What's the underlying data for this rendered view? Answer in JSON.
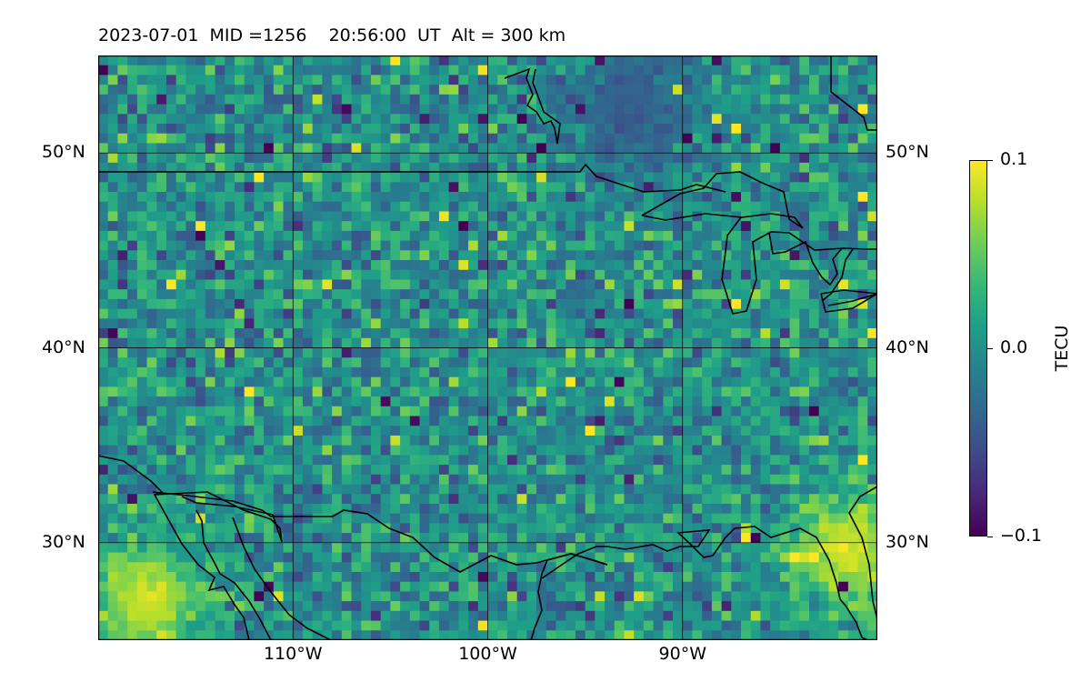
{
  "title": "2023-07-01  MID =1256    20:56:00  UT  Alt = 300 km",
  "map": {
    "projection": "plate-carree",
    "lon_range": [
      -120,
      -80
    ],
    "lat_range": [
      25,
      55
    ],
    "gridlines": true,
    "coastlines": true,
    "borders": true,
    "lat_labels": [
      {
        "value": 50,
        "text": "50°N"
      },
      {
        "value": 40,
        "text": "40°N"
      },
      {
        "value": 30,
        "text": "30°N"
      }
    ],
    "lon_labels": [
      {
        "value": -110,
        "text": "110°W"
      },
      {
        "value": -100,
        "text": "100°W"
      },
      {
        "value": -90,
        "text": "90°W"
      }
    ],
    "field": {
      "name": "TEC perturbation",
      "units": "TECU",
      "vmin": -0.1,
      "vmax": 0.1,
      "colormap": "viridis",
      "cell_deg": 0.5,
      "background_mean": 0.0,
      "notable_features": [
        {
          "type": "positive-anomaly",
          "lon": -117.5,
          "lat": 27.0,
          "value": 0.1
        },
        {
          "type": "negative-anomaly",
          "lon": -92.5,
          "lat": 52.5,
          "value": -0.05
        },
        {
          "type": "positive-anomaly",
          "lon": -81.5,
          "lat": 29.7,
          "value": 0.1
        }
      ]
    }
  },
  "colorbar": {
    "label": "TECU",
    "ticks": [
      {
        "value": 0.1,
        "text": "0.1"
      },
      {
        "value": 0.0,
        "text": "0.0"
      },
      {
        "value": -0.1,
        "text": "−0.1"
      }
    ]
  }
}
